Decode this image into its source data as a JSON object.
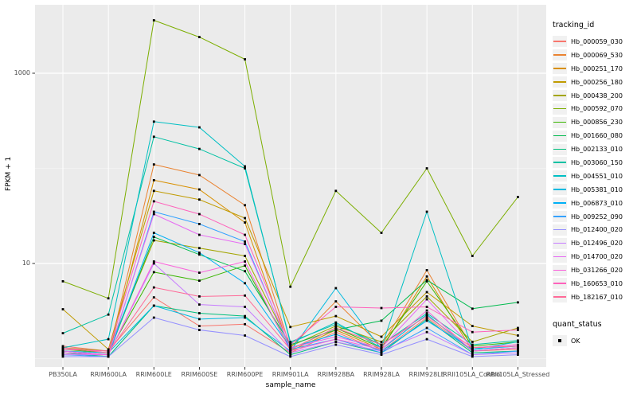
{
  "chart_data": {
    "type": "line",
    "title": "",
    "xlabel": "sample_name",
    "ylabel": "FPKM + 1",
    "y_scale": "log10",
    "ylim": [
      0.89,
      5200
    ],
    "grid": true,
    "legend_position": "right",
    "y_ticks": [
      {
        "value": 10,
        "label": "10"
      },
      {
        "value": 1000,
        "label": "1000"
      }
    ],
    "y_minor_ticks": [
      1,
      100
    ],
    "categories": [
      "PB350LA",
      "RRIM600LA",
      "RRIM600LE",
      "RRIM600SE",
      "RRIM600PE",
      "RRIM901LA",
      "RRIM928BA",
      "RRIM928LA",
      "RRIM928LE",
      "RRII105LA_Control",
      "RRII105LA_Stressed"
    ],
    "point_marker": {
      "shape": "square",
      "color": "#000000"
    },
    "series": [
      {
        "name": "Hb_000059_030",
        "color": "#F8766D",
        "values": [
          1.35,
          1.2,
          4.4,
          2.2,
          2.3,
          1.15,
          1.9,
          1.2,
          2.7,
          1.2,
          1.25
        ]
      },
      {
        "name": "Hb_000069_530",
        "color": "#EA8331",
        "values": [
          1.2,
          1.1,
          110,
          85,
          41,
          1.3,
          4.0,
          1.35,
          8.5,
          1.3,
          1.4
        ]
      },
      {
        "name": "Hb_000251_170",
        "color": "#D89000",
        "values": [
          1.15,
          1.05,
          75,
          60,
          27,
          1.2,
          2.0,
          1.25,
          7.3,
          1.2,
          1.3
        ]
      },
      {
        "name": "Hb_000256_180",
        "color": "#C09B00",
        "values": [
          3.3,
          1.25,
          58,
          47,
          30,
          2.15,
          2.8,
          1.7,
          5.0,
          2.2,
          1.75
        ]
      },
      {
        "name": "Hb_000438_200",
        "color": "#A3A500",
        "values": [
          1.3,
          1.2,
          17.5,
          14.5,
          12,
          1.35,
          2.2,
          1.5,
          4.5,
          1.5,
          2.1
        ]
      },
      {
        "name": "Hb_000592_070",
        "color": "#7CAE00",
        "values": [
          6.5,
          4.3,
          3600,
          2400,
          1400,
          5.7,
          58,
          21,
          100,
          12,
          50
        ]
      },
      {
        "name": "Hb_000856_230",
        "color": "#39B600",
        "values": [
          1.25,
          1.15,
          8.1,
          6.6,
          9.5,
          1.25,
          2.1,
          1.3,
          6.5,
          1.35,
          1.5
        ]
      },
      {
        "name": "Hb_001660_080",
        "color": "#00BB4E",
        "values": [
          1.2,
          1.1,
          19,
          12.4,
          8.3,
          1.4,
          2.0,
          2.5,
          6.7,
          3.35,
          3.9
        ]
      },
      {
        "name": "Hb_002133_010",
        "color": "#00BF7D",
        "values": [
          1.15,
          1.05,
          3.6,
          3.0,
          2.8,
          1.1,
          1.5,
          1.15,
          2.6,
          1.15,
          1.2
        ]
      },
      {
        "name": "Hb_003060_150",
        "color": "#00C1A3",
        "values": [
          1.85,
          2.9,
          215,
          160,
          100,
          1.5,
          2.3,
          1.4,
          3.0,
          1.4,
          1.55
        ]
      },
      {
        "name": "Hb_004551_010",
        "color": "#00BFC4",
        "values": [
          1.3,
          1.6,
          310,
          270,
          105,
          1.45,
          2.4,
          1.3,
          35,
          1.25,
          1.5
        ]
      },
      {
        "name": "Hb_005381_010",
        "color": "#00BAE0",
        "values": [
          1.2,
          1.15,
          3.6,
          2.6,
          2.7,
          1.2,
          5.5,
          1.25,
          2.9,
          1.2,
          1.3
        ]
      },
      {
        "name": "Hb_006873_010",
        "color": "#00B0F6",
        "values": [
          1.15,
          1.1,
          21,
          13,
          6.2,
          1.3,
          1.8,
          1.2,
          2.5,
          1.25,
          1.35
        ]
      },
      {
        "name": "Hb_009252_090",
        "color": "#35A2FF",
        "values": [
          1.1,
          1.05,
          35,
          26,
          17,
          1.25,
          1.6,
          1.15,
          2.1,
          1.1,
          1.2
        ]
      },
      {
        "name": "Hb_012400_020",
        "color": "#9590FF",
        "values": [
          1.05,
          1.05,
          2.7,
          2.0,
          1.75,
          1.05,
          1.4,
          1.1,
          1.6,
          1.05,
          1.1
        ]
      },
      {
        "name": "Hb_012496_020",
        "color": "#C77CFF",
        "values": [
          1.1,
          1.1,
          10,
          3.7,
          3.5,
          1.15,
          1.5,
          1.2,
          1.9,
          1.1,
          1.15
        ]
      },
      {
        "name": "Hb_014700_020",
        "color": "#E76BF3",
        "values": [
          1.2,
          1.1,
          33,
          20,
          16,
          1.3,
          1.7,
          1.3,
          4.2,
          1.3,
          1.4
        ]
      },
      {
        "name": "Hb_031266_020",
        "color": "#FA62DB",
        "values": [
          1.15,
          1.1,
          10.5,
          8.0,
          10.5,
          1.2,
          1.6,
          1.25,
          3.2,
          1.2,
          1.3
        ]
      },
      {
        "name": "Hb_160653_010",
        "color": "#FF62BC",
        "values": [
          1.25,
          1.2,
          45,
          33,
          20,
          1.4,
          3.5,
          3.4,
          3.5,
          1.9,
          2.0
        ]
      },
      {
        "name": "Hb_182167_010",
        "color": "#FF6A98",
        "values": [
          1.3,
          1.15,
          5.6,
          4.5,
          4.6,
          1.25,
          2.1,
          1.4,
          2.8,
          1.3,
          1.35
        ]
      }
    ]
  },
  "legend": {
    "tracking_title": "tracking_id",
    "quant_title": "quant_status",
    "quant_items": [
      {
        "label": "OK"
      }
    ]
  },
  "panel": {
    "bg": "#EBEBEB",
    "grid_major": "#FFFFFF",
    "grid_minor": "#FFFFFF",
    "tick_color": "#333333",
    "label_color": "#4d4d4d"
  }
}
